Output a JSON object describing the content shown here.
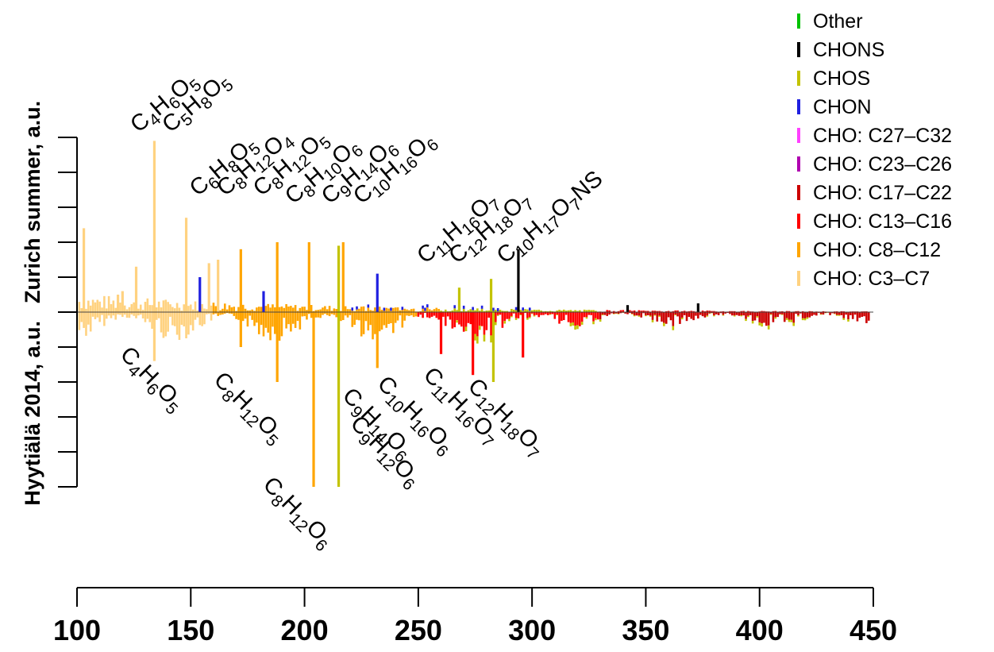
{
  "chart_data": {
    "type": "bar",
    "orientation": "mirrored-vertical",
    "xlim": [
      100,
      450
    ],
    "x_ticks": [
      "100",
      "150",
      "200",
      "250",
      "300",
      "350",
      "400",
      "450"
    ],
    "ylabel_top": "Zurich summer, a.u.",
    "ylabel_bottom": "Hyytiälä 2014, a.u.",
    "legend": [
      {
        "label": "Other",
        "color": "#00c200"
      },
      {
        "label": "CHONS",
        "color": "#000000"
      },
      {
        "label": "CHOS",
        "color": "#c3c300"
      },
      {
        "label": "CHON",
        "color": "#2020e0"
      },
      {
        "label": "CHO: C27–C32",
        "color": "#ff40ff"
      },
      {
        "label": "CHO: C23–C26",
        "color": "#b000b0"
      },
      {
        "label": "CHO: C17–C22",
        "color": "#cc0000"
      },
      {
        "label": "CHO: C13–C16",
        "color": "#ff0000"
      },
      {
        "label": "CHO: C8–C12",
        "color": "#ffa500"
      },
      {
        "label": "CHO: C3–C7",
        "color": "#ffd280"
      }
    ],
    "annotations_top": [
      {
        "label": "C4H6O5",
        "mz": 134
      },
      {
        "label": "C5H8O5",
        "mz": 148
      },
      {
        "label": "C6H8O5",
        "mz": 160
      },
      {
        "label": "C8H12O4",
        "mz": 172
      },
      {
        "label": "C8H12O5",
        "mz": 188
      },
      {
        "label": "C8H10O6",
        "mz": 202
      },
      {
        "label": "C9H14O6",
        "mz": 218
      },
      {
        "label": "C10H16O6",
        "mz": 232
      },
      {
        "label": "C11H16O7",
        "mz": 260
      },
      {
        "label": "C12H18O7",
        "mz": 274
      },
      {
        "label": "C10H17O7NS",
        "mz": 295
      }
    ],
    "annotations_bottom": [
      {
        "label": "C4H6O5",
        "mz": 134
      },
      {
        "label": "C8H12O5",
        "mz": 188
      },
      {
        "label": "C8H12O6",
        "mz": 204
      },
      {
        "label": "C9H14O6",
        "mz": 218
      },
      {
        "label": "C9H12O6",
        "mz": 216
      },
      {
        "label": "C10H16O6",
        "mz": 232
      },
      {
        "label": "C11H16O7",
        "mz": 260
      },
      {
        "label": "C12H18O7",
        "mz": 274
      }
    ],
    "series_top": [
      {
        "mz": 103,
        "class": "CHO: C3–C7",
        "value": 2.4
      },
      {
        "mz": 118,
        "class": "CHO: C3–C7",
        "value": 0.5
      },
      {
        "mz": 120,
        "class": "CHO: C3–C7",
        "value": 0.6
      },
      {
        "mz": 126,
        "class": "CHO: C3–C7",
        "value": 1.3
      },
      {
        "mz": 134,
        "class": "CHO: C3–C7",
        "value": 4.9
      },
      {
        "mz": 148,
        "class": "CHO: C3–C7",
        "value": 2.7
      },
      {
        "mz": 154,
        "class": "CHON",
        "value": 1.0
      },
      {
        "mz": 158,
        "class": "CHO: C3–C7",
        "value": 1.4
      },
      {
        "mz": 162,
        "class": "CHO: C3–C7",
        "value": 1.5
      },
      {
        "mz": 172,
        "class": "CHO: C8–C12",
        "value": 1.8
      },
      {
        "mz": 182,
        "class": "CHON",
        "value": 0.6
      },
      {
        "mz": 188,
        "class": "CHO: C8–C12",
        "value": 2.0
      },
      {
        "mz": 202,
        "class": "CHO: C8–C12",
        "value": 2.0
      },
      {
        "mz": 215,
        "class": "CHOS",
        "value": 1.9
      },
      {
        "mz": 217,
        "class": "CHO: C8–C12",
        "value": 2.0
      },
      {
        "mz": 232,
        "class": "CHON",
        "value": 1.1
      },
      {
        "mz": 268,
        "class": "CHOS",
        "value": 0.7
      },
      {
        "mz": 282,
        "class": "CHOS",
        "value": 0.95
      },
      {
        "mz": 294,
        "class": "CHONS",
        "value": 1.8
      },
      {
        "mz": 342,
        "class": "CHONS",
        "value": 0.2
      },
      {
        "mz": 373,
        "class": "CHONS",
        "value": 0.25
      }
    ],
    "series_bottom": [
      {
        "mz": 134,
        "class": "CHO: C3–C7",
        "value": 1.4
      },
      {
        "mz": 172,
        "class": "CHO: C8–C12",
        "value": 1.0
      },
      {
        "mz": 188,
        "class": "CHO: C8–C12",
        "value": 2.0
      },
      {
        "mz": 204,
        "class": "CHO: C8–C12",
        "value": 5.0
      },
      {
        "mz": 215,
        "class": "CHOS",
        "value": 5.0
      },
      {
        "mz": 232,
        "class": "CHO: C8–C12",
        "value": 1.6
      },
      {
        "mz": 260,
        "class": "CHO: C13–C16",
        "value": 1.2
      },
      {
        "mz": 274,
        "class": "CHO: C13–C16",
        "value": 1.8
      },
      {
        "mz": 283,
        "class": "CHOS",
        "value": 2.0
      },
      {
        "mz": 296,
        "class": "CHO: C13–C16",
        "value": 1.3
      }
    ]
  }
}
